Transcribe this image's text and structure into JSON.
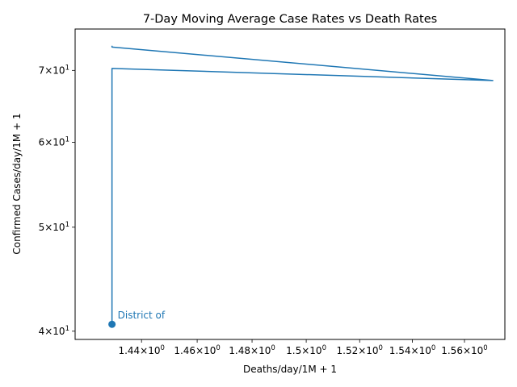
{
  "chart_data": {
    "type": "line",
    "title": "7-Day Moving Average Case Rates vs Death Rates",
    "xlabel": "Deaths/day/1M + 1",
    "ylabel": "Confirmed Cases/day/1M + 1",
    "xscale": "log",
    "yscale": "log",
    "xlim": [
      1.4165,
      1.5757
    ],
    "ylim": [
      39.3,
      76.5
    ],
    "grid": false,
    "line_color": "#1f77b4",
    "x_ticks": [
      {
        "value": 1.44,
        "label": "1.44 × 10^0"
      },
      {
        "value": 1.46,
        "label": "1.46 × 10^0"
      },
      {
        "value": 1.48,
        "label": "1.48 × 10^0"
      },
      {
        "value": 1.5,
        "label": "1.5 × 10^0"
      },
      {
        "value": 1.52,
        "label": "1.52 × 10^0"
      },
      {
        "value": 1.54,
        "label": "1.54 × 10^0"
      },
      {
        "value": 1.56,
        "label": "1.56 × 10^0"
      }
    ],
    "y_ticks": [
      {
        "value": 40,
        "label": "4 × 10^1"
      },
      {
        "value": 50,
        "label": "5 × 10^1"
      },
      {
        "value": 60,
        "label": "6 × 10^1"
      },
      {
        "value": 70,
        "label": "7 × 10^1"
      }
    ],
    "series": [
      {
        "x": [
          1.4295,
          1.4295,
          1.4295,
          1.571,
          1.4295,
          1.4295
        ],
        "y": [
          40.6,
          40.6,
          70.3,
          68.5,
          73.6,
          73.8
        ]
      }
    ],
    "marker": {
      "x": 1.4295,
      "y": 40.6
    },
    "annotation": {
      "text": "District of",
      "x": 1.4295,
      "y": 40.6
    }
  }
}
